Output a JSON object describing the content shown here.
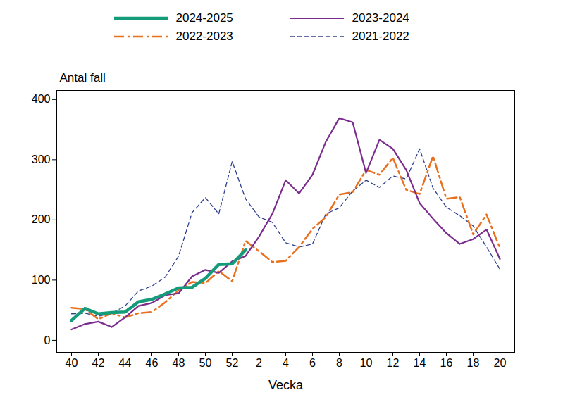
{
  "chart_data": {
    "type": "line",
    "x_label": "Vecka",
    "y_label": "Antal fall",
    "categories": [
      "40",
      null,
      "42",
      null,
      "44",
      null,
      "46",
      null,
      "48",
      null,
      "50",
      null,
      "52",
      null,
      "2",
      null,
      "4",
      null,
      "6",
      null,
      "8",
      null,
      "10",
      null,
      "12",
      null,
      "14",
      null,
      "16",
      null,
      "18",
      null,
      "20"
    ],
    "series": [
      {
        "name": "2024-2025",
        "color": "#149c7a",
        "line_style": "solid",
        "values": [
          33,
          53,
          44,
          46,
          47,
          64,
          68,
          77,
          87,
          88,
          103,
          126,
          127,
          150,
          null,
          null,
          null,
          null,
          null,
          null,
          null,
          null,
          null,
          null,
          null,
          null,
          null,
          null,
          null,
          null,
          null,
          null,
          null
        ]
      },
      {
        "name": "2023-2024",
        "color": "#7b2c8f",
        "line_style": "solid",
        "values": [
          18,
          27,
          31,
          22,
          38,
          57,
          62,
          75,
          78,
          106,
          117,
          112,
          131,
          140,
          172,
          210,
          266,
          244,
          275,
          330,
          369,
          362,
          278,
          333,
          318,
          283,
          228,
          202,
          178,
          160,
          168,
          184,
          135
        ]
      },
      {
        "name": "2022-2023",
        "color": "#e8701f",
        "line_style": "dashdot",
        "values": [
          54,
          52,
          35,
          45,
          38,
          45,
          47,
          63,
          83,
          97,
          95,
          115,
          98,
          165,
          148,
          130,
          132,
          155,
          185,
          205,
          242,
          246,
          283,
          275,
          303,
          250,
          243,
          306,
          235,
          238,
          176,
          209,
          153
        ]
      },
      {
        "name": "2021-2022",
        "color": "#2e3f8f",
        "line_style": "dashed",
        "values": [
          44,
          45,
          40,
          45,
          57,
          82,
          90,
          105,
          140,
          212,
          237,
          210,
          297,
          235,
          205,
          196,
          162,
          155,
          160,
          210,
          220,
          248,
          266,
          254,
          273,
          268,
          318,
          253,
          221,
          207,
          190,
          155,
          118
        ]
      }
    ],
    "ylim": [
      -20,
      415
    ],
    "yticks": [
      0,
      100,
      200,
      300,
      400
    ],
    "grid": false,
    "legend": "top"
  }
}
